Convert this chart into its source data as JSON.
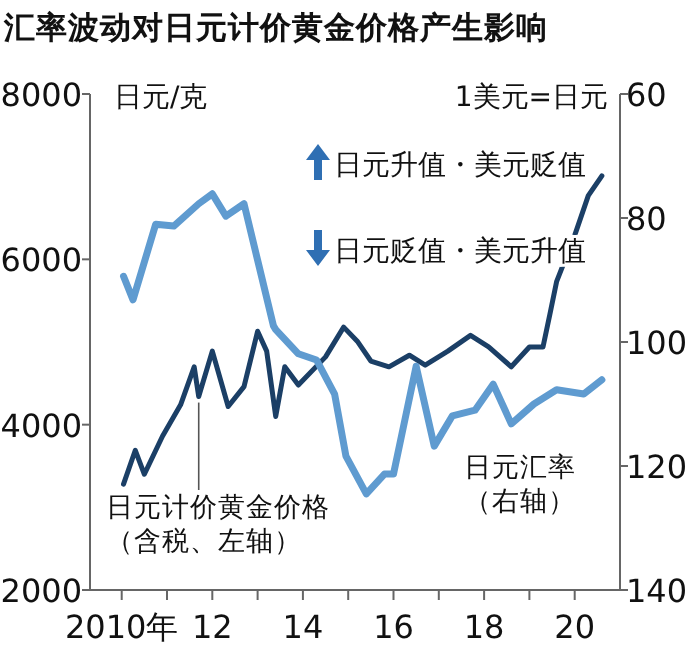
{
  "chart_data": {
    "type": "line",
    "title": "汇率波动对日元计价黄金价格产生影响",
    "ylabel": "日元/克",
    "y2label": "1美元=日元",
    "annotations": [
      "日元升值・美元贬值",
      "日元贬值・美元升值"
    ],
    "xlim": [
      2009.3,
      2021.0
    ],
    "xticks": [
      {
        "value": 2010,
        "label": "2010年"
      },
      {
        "value": 2011,
        "label": null
      },
      {
        "value": 2012,
        "label": "12"
      },
      {
        "value": 2013,
        "label": null
      },
      {
        "value": 2014,
        "label": "14"
      },
      {
        "value": 2015,
        "label": null
      },
      {
        "value": 2016,
        "label": "16"
      },
      {
        "value": 2017,
        "label": null
      },
      {
        "value": 2018,
        "label": "18"
      },
      {
        "value": 2019,
        "label": null
      },
      {
        "value": 2020,
        "label": "20"
      }
    ],
    "ylim": [
      2000,
      8000
    ],
    "yticks": [
      2000,
      4000,
      6000,
      8000
    ],
    "y2lim": [
      140,
      60
    ],
    "y2ticks": [
      60,
      80,
      100,
      120,
      140
    ],
    "grid": false,
    "series": [
      {
        "name": "日元计价黄金价格（含税、左轴）",
        "color": "#1b3f66",
        "x": [
          2010.04,
          2010.3,
          2010.5,
          2010.9,
          2011.3,
          2011.6,
          2011.7,
          2012.0,
          2012.35,
          2012.7,
          2013.0,
          2013.2,
          2013.4,
          2013.6,
          2013.9,
          2014.5,
          2014.9,
          2015.2,
          2015.5,
          2015.9,
          2016.35,
          2016.7,
          2017.2,
          2017.7,
          2018.1,
          2018.6,
          2019.0,
          2019.3,
          2019.45,
          2019.6,
          2020.0,
          2020.3,
          2020.6
        ],
        "values": [
          3280,
          3690,
          3400,
          3860,
          4240,
          4700,
          4340,
          4890,
          4220,
          4460,
          5130,
          4890,
          4100,
          4700,
          4480,
          4820,
          5180,
          5010,
          4770,
          4700,
          4840,
          4720,
          4890,
          5080,
          4940,
          4700,
          4940,
          4940,
          5330,
          5730,
          6290,
          6770,
          7010
        ]
      },
      {
        "name": "日元汇率（右轴）",
        "color": "#5f9bd0",
        "axis": "y2",
        "x": [
          2010.04,
          2010.25,
          2010.75,
          2011.15,
          2011.7,
          2012.0,
          2012.3,
          2012.7,
          2013.0,
          2013.35,
          2013.4,
          2013.9,
          2014.3,
          2014.7,
          2014.95,
          2015.4,
          2015.8,
          2016.0,
          2016.25,
          2016.5,
          2016.9,
          2017.3,
          2017.8,
          2018.2,
          2018.6,
          2019.1,
          2019.6,
          2020.2,
          2020.6
        ],
        "values": [
          89.4,
          93.2,
          81.0,
          81.3,
          77.7,
          76.1,
          79.7,
          77.7,
          86.8,
          97.4,
          98.0,
          101.9,
          102.9,
          108.4,
          118.4,
          124.5,
          121.3,
          121.3,
          112.6,
          103.9,
          116.8,
          111.9,
          111.0,
          106.8,
          113.2,
          110.0,
          107.7,
          108.4,
          106.1
        ]
      }
    ]
  }
}
